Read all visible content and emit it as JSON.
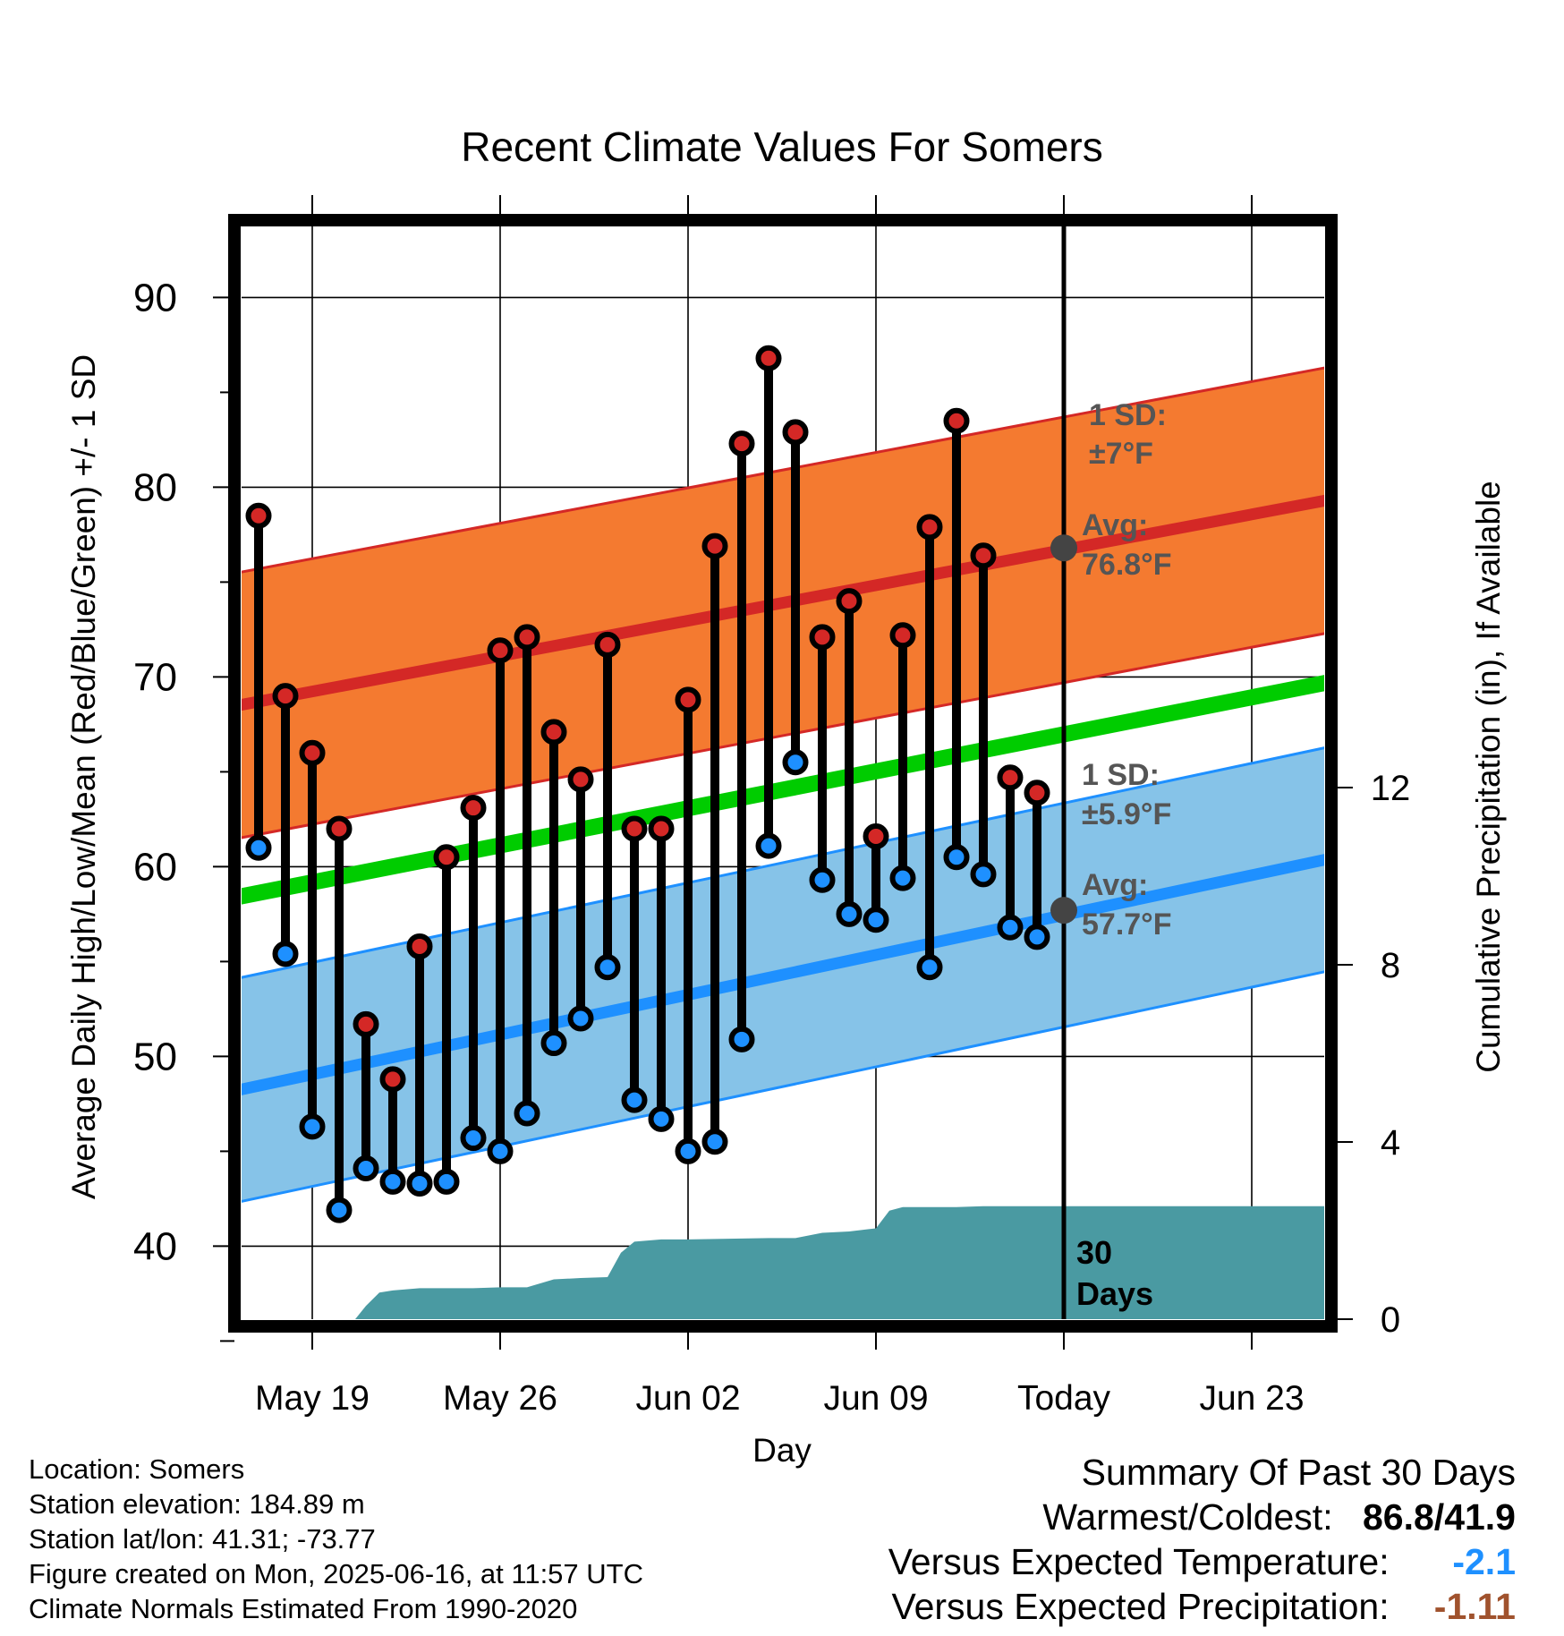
{
  "chart_data": {
    "type": "line",
    "title": "Recent Climate Values For Somers",
    "xlabel": "Day",
    "ylabel": "Average Daily High/Low/Mean (Red/Blue/Green) +/- 1 SD",
    "y2label": "Cumulative Precipitation (in), If Available",
    "ylim": [
      34.2,
      92
    ],
    "y2lim": [
      0,
      21.2
    ],
    "xlim": [
      15.5,
      57.5
    ],
    "x_tick_labels": [
      {
        "x": 19,
        "label": "May 19"
      },
      {
        "x": 26,
        "label": "May 26"
      },
      {
        "x": 33,
        "label": "Jun 02"
      },
      {
        "x": 40,
        "label": "Jun 09"
      },
      {
        "x": 47,
        "label": "Today"
      },
      {
        "x": 54,
        "label": "Jun 23"
      }
    ],
    "y_ticks": [
      40,
      50,
      60,
      70,
      80,
      90
    ],
    "y_minor_ticks": [
      35,
      45,
      55,
      65,
      75,
      85
    ],
    "y2_ticks": [
      0,
      4,
      8,
      12
    ],
    "grid": true,
    "today_x": 47,
    "days": [
      17,
      18,
      19,
      20,
      21,
      22,
      23,
      24,
      25,
      26,
      27,
      28,
      29,
      30,
      31,
      32,
      33,
      34,
      35,
      36,
      37,
      38,
      39,
      40,
      41,
      42,
      43,
      44,
      45,
      46
    ],
    "daily_high": [
      78.5,
      69.0,
      66.0,
      62.0,
      51.7,
      48.8,
      55.8,
      60.5,
      63.1,
      71.4,
      72.1,
      67.1,
      64.6,
      71.7,
      62.0,
      62.0,
      68.8,
      76.9,
      82.3,
      86.8,
      82.9,
      72.1,
      74.0,
      61.6,
      72.2,
      77.9,
      83.5,
      76.4,
      64.7,
      63.9
    ],
    "daily_low": [
      61.0,
      55.4,
      46.3,
      41.9,
      44.1,
      43.4,
      43.3,
      43.4,
      45.7,
      45.0,
      47.0,
      50.7,
      52.0,
      54.7,
      47.7,
      46.7,
      45.0,
      45.5,
      50.9,
      61.1,
      65.5,
      59.3,
      57.5,
      57.2,
      59.4,
      54.7,
      60.5,
      59.6,
      56.8,
      56.3
    ],
    "normal_high": {
      "x": [
        15.5,
        57.5
      ],
      "values": [
        68.3,
        79.5
      ],
      "sd": 7,
      "label_sd": "1 SD:",
      "label_sd_value": "±7°F",
      "label_avg": "Avg:",
      "label_avg_value": "76.8°F"
    },
    "normal_low": {
      "x": [
        15.5,
        57.5
      ],
      "values": [
        48.0,
        60.6
      ],
      "sd": 5.9,
      "label_sd": "1 SD:",
      "label_sd_value": "±5.9°F",
      "label_avg": "Avg:",
      "label_avg_value": "57.7°F"
    },
    "normal_mean": {
      "x": [
        15.5,
        57.5
      ],
      "values": [
        58.2,
        69.9
      ]
    },
    "today_markers": [
      {
        "x": 47,
        "y": 76.8
      },
      {
        "x": 47,
        "y": 57.7
      }
    ],
    "precip_cumulative": {
      "x": [
        17,
        18,
        19,
        20,
        20.6,
        21,
        21.5,
        22,
        23,
        24,
        25,
        26,
        26.5,
        27,
        28,
        28.7,
        29,
        30,
        30.5,
        31,
        32,
        33,
        34,
        35,
        36,
        37,
        38,
        39,
        39.7,
        40,
        40.5,
        41,
        42,
        43,
        44,
        45,
        46,
        47,
        48,
        50,
        52,
        54,
        56,
        57.5
      ],
      "values": [
        0,
        0,
        0,
        0,
        0,
        0.3,
        0.6,
        0.65,
        0.7,
        0.7,
        0.7,
        0.72,
        0.72,
        0.72,
        0.9,
        0.92,
        0.93,
        0.95,
        1.5,
        1.75,
        1.8,
        1.8,
        1.81,
        1.82,
        1.83,
        1.83,
        1.95,
        1.98,
        2.03,
        2.05,
        2.45,
        2.53,
        2.53,
        2.53,
        2.55,
        2.55,
        2.55,
        2.55,
        2.55,
        2.55,
        2.55,
        2.55,
        2.55,
        2.55
      ],
      "label_count": "30",
      "label_unit": "Days"
    },
    "colors": {
      "high_band": "#f47a30",
      "high_avg": "#d42826",
      "low_band": "#86c3e8",
      "low_avg": "#1e90ff",
      "mean": "#00cc00",
      "precip": "#4a9aa2",
      "high_dot": "#d42826",
      "low_dot": "#1e90ff",
      "annotation": "#555555"
    }
  },
  "info": {
    "location": "Location: Somers",
    "elevation": "Station elevation: 184.89 m",
    "latlon": "Station lat/lon: 41.31; -73.77",
    "created": "Figure created on Mon, 2025-06-16, at 11:57 UTC",
    "normals": "Climate Normals Estimated From 1990-2020"
  },
  "summary": {
    "heading": "Summary Of Past 30 Days",
    "warm_cold_label": "Warmest/Coldest:",
    "warm_cold_value": "86.8/41.9",
    "temp_label": "Versus Expected Temperature:",
    "temp_value": "-2.1",
    "temp_color": "#1e90ff",
    "precip_label": "Versus Expected Precipitation:",
    "precip_value": "-1.11",
    "precip_color": "#a0522d"
  }
}
